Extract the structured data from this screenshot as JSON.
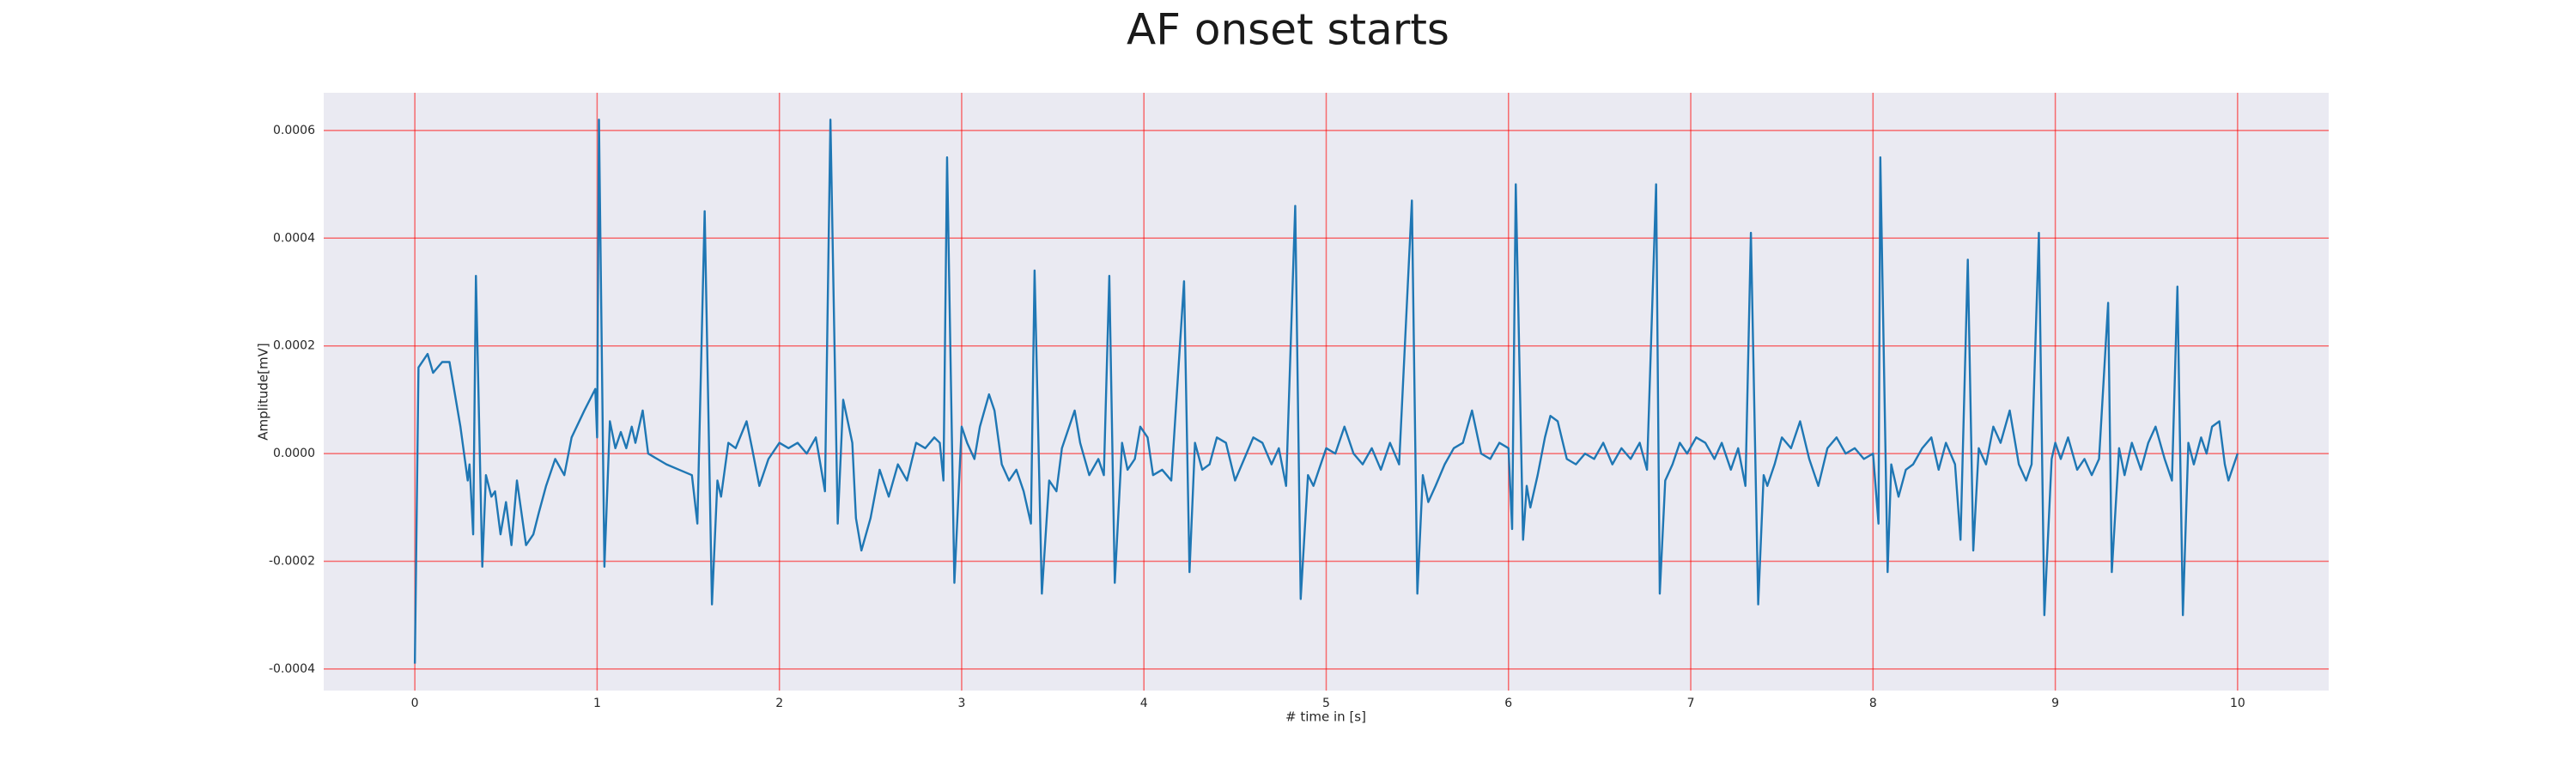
{
  "chart_data": {
    "type": "line",
    "title": "AF onset starts",
    "xlabel": "# time in [s]",
    "ylabel": "Amplitude[mV]",
    "color": "#1f77b4",
    "grid": true,
    "grid_color": "#ff0000",
    "background": "#eaeaf2",
    "xlim": [
      -0.5,
      10.5
    ],
    "ylim": [
      -0.00044,
      0.00067
    ],
    "xticks": [
      0,
      1,
      2,
      3,
      4,
      5,
      6,
      7,
      8,
      9,
      10
    ],
    "yticks": [
      {
        "value": -0.0004,
        "label": "-0.0004"
      },
      {
        "value": -0.0002,
        "label": "-0.0002"
      },
      {
        "value": 0,
        "label": "0.0000"
      },
      {
        "value": 0.0002,
        "label": "0.0002"
      },
      {
        "value": 0.0004,
        "label": "0.0004"
      },
      {
        "value": 0.0006,
        "label": "0.0006"
      }
    ],
    "x": [
      0,
      0.02,
      0.07,
      0.1,
      0.15,
      0.19,
      0.25,
      0.29,
      0.3,
      0.32,
      0.335,
      0.37,
      0.39,
      0.42,
      0.44,
      0.47,
      0.5,
      0.53,
      0.56,
      0.61,
      0.65,
      0.68,
      0.72,
      0.77,
      0.82,
      0.86,
      0.93,
      0.99,
      1.0,
      1.01,
      1.04,
      1.07,
      1.1,
      1.13,
      1.16,
      1.19,
      1.21,
      1.25,
      1.28,
      1.33,
      1.38,
      1.45,
      1.52,
      1.55,
      1.59,
      1.63,
      1.66,
      1.68,
      1.72,
      1.76,
      1.82,
      1.85,
      1.89,
      1.94,
      2.0,
      2.05,
      2.1,
      2.15,
      2.2,
      2.25,
      2.28,
      2.32,
      2.35,
      2.4,
      2.42,
      2.45,
      2.5,
      2.55,
      2.6,
      2.65,
      2.7,
      2.75,
      2.8,
      2.85,
      2.88,
      2.9,
      2.92,
      2.96,
      3.0,
      3.03,
      3.07,
      3.1,
      3.15,
      3.18,
      3.22,
      3.26,
      3.3,
      3.34,
      3.38,
      3.4,
      3.44,
      3.48,
      3.52,
      3.55,
      3.58,
      3.62,
      3.65,
      3.7,
      3.75,
      3.78,
      3.81,
      3.84,
      3.88,
      3.91,
      3.95,
      3.98,
      4.02,
      4.05,
      4.1,
      4.15,
      4.22,
      4.25,
      4.28,
      4.32,
      4.36,
      4.4,
      4.45,
      4.5,
      4.55,
      4.6,
      4.65,
      4.7,
      4.74,
      4.78,
      4.83,
      4.86,
      4.9,
      4.93,
      4.97,
      5.0,
      5.05,
      5.1,
      5.15,
      5.2,
      5.25,
      5.3,
      5.35,
      5.4,
      5.47,
      5.5,
      5.53,
      5.56,
      5.6,
      5.65,
      5.7,
      5.75,
      5.8,
      5.85,
      5.9,
      5.95,
      6.0,
      6.02,
      6.04,
      6.08,
      6.1,
      6.12,
      6.16,
      6.2,
      6.23,
      6.27,
      6.32,
      6.37,
      6.42,
      6.47,
      6.52,
      6.57,
      6.62,
      6.67,
      6.72,
      6.76,
      6.81,
      6.83,
      6.86,
      6.9,
      6.94,
      6.98,
      7.03,
      7.08,
      7.13,
      7.17,
      7.22,
      7.26,
      7.3,
      7.33,
      7.37,
      7.4,
      7.42,
      7.46,
      7.5,
      7.55,
      7.6,
      7.65,
      7.7,
      7.75,
      7.8,
      7.85,
      7.9,
      7.95,
      8.0,
      8.03,
      8.04,
      8.08,
      8.1,
      8.14,
      8.18,
      8.22,
      8.27,
      8.32,
      8.36,
      8.4,
      8.45,
      8.48,
      8.52,
      8.55,
      8.58,
      8.62,
      8.66,
      8.7,
      8.75,
      8.8,
      8.84,
      8.87,
      8.91,
      8.94,
      8.98,
      9.0,
      9.03,
      9.07,
      9.12,
      9.16,
      9.2,
      9.24,
      9.29,
      9.31,
      9.35,
      9.38,
      9.42,
      9.47,
      9.51,
      9.55,
      9.6,
      9.64,
      9.67,
      9.7,
      9.73,
      9.76,
      9.8,
      9.83,
      9.86,
      9.9,
      9.93,
      9.95,
      10.0
    ],
    "values": [
      -0.00039,
      0.00016,
      0.000185,
      0.00015,
      0.00017,
      0.00017,
      5e-05,
      -5e-05,
      -2e-05,
      -0.00015,
      0.00033,
      -0.00021,
      -4e-05,
      -8e-05,
      -7e-05,
      -0.00015,
      -9e-05,
      -0.00017,
      -5e-05,
      -0.00017,
      -0.00015,
      -0.00011,
      -6e-05,
      -1e-05,
      -4e-05,
      3e-05,
      8e-05,
      0.00012,
      3e-05,
      0.00062,
      -0.00021,
      6e-05,
      1e-05,
      4e-05,
      1e-05,
      5e-05,
      2e-05,
      8e-05,
      0,
      -1e-05,
      -2e-05,
      -3e-05,
      -4e-05,
      -0.00013,
      0.00045,
      -0.00028,
      -5e-05,
      -8e-05,
      2e-05,
      1e-05,
      6e-05,
      1e-05,
      -6e-05,
      -1e-05,
      2e-05,
      1e-05,
      2e-05,
      0,
      3e-05,
      -7e-05,
      0.00062,
      -0.00013,
      0.0001,
      2e-05,
      -0.00012,
      -0.00018,
      -0.00012,
      -3e-05,
      -8e-05,
      -2e-05,
      -5e-05,
      2e-05,
      1e-05,
      3e-05,
      2e-05,
      -5e-05,
      0.00055,
      -0.00024,
      5e-05,
      2e-05,
      -1e-05,
      5e-05,
      0.00011,
      8e-05,
      -2e-05,
      -5e-05,
      -3e-05,
      -7e-05,
      -0.00013,
      0.00034,
      -0.00026,
      -5e-05,
      -7e-05,
      1e-05,
      4e-05,
      8e-05,
      2e-05,
      -4e-05,
      -1e-05,
      -4e-05,
      0.00033,
      -0.00024,
      2e-05,
      -3e-05,
      -1e-05,
      5e-05,
      3e-05,
      -4e-05,
      -3e-05,
      -5e-05,
      0.00032,
      -0.00022,
      2e-05,
      -3e-05,
      -2e-05,
      3e-05,
      2e-05,
      -5e-05,
      -1e-05,
      3e-05,
      2e-05,
      -2e-05,
      1e-05,
      -6e-05,
      0.00046,
      -0.00027,
      -4e-05,
      -6e-05,
      -2e-05,
      1e-05,
      0,
      5e-05,
      0,
      -2e-05,
      1e-05,
      -3e-05,
      2e-05,
      -2e-05,
      0.00047,
      -0.00026,
      -4e-05,
      -9e-05,
      -6e-05,
      -2e-05,
      1e-05,
      2e-05,
      8e-05,
      0,
      -1e-05,
      2e-05,
      1e-05,
      -0.00014,
      0.0005,
      -0.00016,
      -6e-05,
      -0.0001,
      -4e-05,
      3e-05,
      7e-05,
      6e-05,
      -1e-05,
      -2e-05,
      0,
      -1e-05,
      2e-05,
      -2e-05,
      1e-05,
      -1e-05,
      2e-05,
      -3e-05,
      0.0005,
      -0.00026,
      -5e-05,
      -2e-05,
      2e-05,
      0,
      3e-05,
      2e-05,
      -1e-05,
      2e-05,
      -3e-05,
      1e-05,
      -6e-05,
      0.00041,
      -0.00028,
      -4e-05,
      -6e-05,
      -2e-05,
      3e-05,
      1e-05,
      6e-05,
      -1e-05,
      -6e-05,
      1e-05,
      3e-05,
      0,
      1e-05,
      -1e-05,
      0,
      -0.00013,
      0.00055,
      -0.00022,
      -2e-05,
      -8e-05,
      -3e-05,
      -2e-05,
      1e-05,
      3e-05,
      -3e-05,
      2e-05,
      -2e-05,
      -0.00016,
      0.00036,
      -0.00018,
      1e-05,
      -2e-05,
      5e-05,
      2e-05,
      8e-05,
      -2e-05,
      -5e-05,
      -2e-05,
      0.00041,
      -0.0003,
      -1e-05,
      2e-05,
      -1e-05,
      3e-05,
      -3e-05,
      -1e-05,
      -4e-05,
      -1e-05,
      0.00028,
      -0.00022,
      1e-05,
      -4e-05,
      2e-05,
      -3e-05,
      2e-05,
      5e-05,
      -1e-05,
      -5e-05,
      0.00031,
      -0.0003,
      2e-05,
      -2e-05,
      3e-05,
      0,
      5e-05,
      6e-05,
      -2e-05,
      -5e-05,
      0
    ]
  }
}
